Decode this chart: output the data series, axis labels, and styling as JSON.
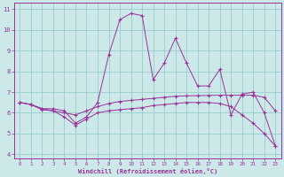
{
  "xlabel": "Windchill (Refroidissement éolien,°C)",
  "bg_color": "#cce8e8",
  "line_color": "#993399",
  "grid_color": "#99cccc",
  "xlim_min": -0.5,
  "xlim_max": 23.5,
  "ylim_min": 3.8,
  "ylim_max": 11.3,
  "yticks": [
    4,
    5,
    6,
    7,
    8,
    9,
    10,
    11
  ],
  "xticks": [
    0,
    1,
    2,
    3,
    4,
    5,
    6,
    7,
    8,
    9,
    10,
    11,
    12,
    13,
    14,
    15,
    16,
    17,
    18,
    19,
    20,
    21,
    22,
    23
  ],
  "line1_x": [
    0,
    1,
    2,
    3,
    4,
    5,
    6,
    7,
    8,
    9,
    10,
    11,
    12,
    13,
    14,
    15,
    16,
    17,
    18,
    19,
    20,
    21,
    22,
    23
  ],
  "line1_y": [
    6.5,
    6.4,
    6.2,
    6.2,
    6.1,
    5.5,
    5.8,
    6.5,
    8.8,
    10.5,
    10.8,
    10.7,
    7.6,
    8.4,
    9.6,
    8.4,
    7.3,
    7.3,
    8.1,
    5.9,
    6.9,
    7.0,
    6.0,
    4.4
  ],
  "line2_x": [
    0,
    1,
    2,
    3,
    4,
    5,
    6,
    7,
    8,
    9,
    10,
    11,
    12,
    13,
    14,
    15,
    16,
    17,
    18,
    19,
    20,
    21,
    22,
    23
  ],
  "line2_y": [
    6.5,
    6.4,
    6.2,
    6.1,
    6.0,
    5.9,
    6.1,
    6.3,
    6.45,
    6.55,
    6.6,
    6.65,
    6.7,
    6.75,
    6.8,
    6.82,
    6.83,
    6.84,
    6.85,
    6.85,
    6.85,
    6.85,
    6.75,
    6.1
  ],
  "line3_x": [
    0,
    1,
    2,
    3,
    4,
    5,
    6,
    7,
    8,
    9,
    10,
    11,
    12,
    13,
    14,
    15,
    16,
    17,
    18,
    19,
    20,
    21,
    22,
    23
  ],
  "line3_y": [
    6.5,
    6.4,
    6.15,
    6.1,
    5.8,
    5.4,
    5.7,
    6.0,
    6.1,
    6.15,
    6.2,
    6.25,
    6.35,
    6.4,
    6.45,
    6.5,
    6.5,
    6.5,
    6.45,
    6.3,
    5.9,
    5.5,
    5.0,
    4.4
  ]
}
